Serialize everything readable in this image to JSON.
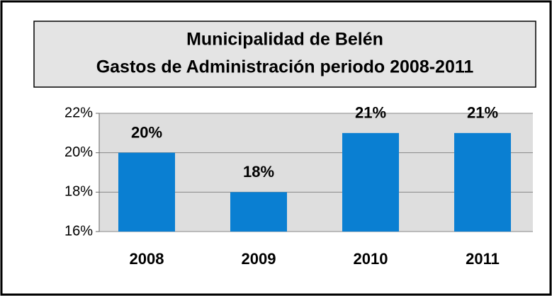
{
  "chart_data": {
    "type": "bar",
    "title": "Municipalidad de Belén",
    "subtitle": "Gastos de Administración periodo 2008-2011",
    "categories": [
      "2008",
      "2009",
      "2010",
      "2011"
    ],
    "values": [
      20,
      18,
      21,
      21
    ],
    "value_labels": [
      "20%",
      "18%",
      "21%",
      "21%"
    ],
    "color": "#0a7fd2",
    "ylim": [
      16,
      22
    ],
    "yticks": [
      {
        "value": 16,
        "label": "16%"
      },
      {
        "value": 18,
        "label": "18%"
      },
      {
        "value": 20,
        "label": "20%"
      },
      {
        "value": 22,
        "label": "22%"
      }
    ],
    "grid": true
  }
}
